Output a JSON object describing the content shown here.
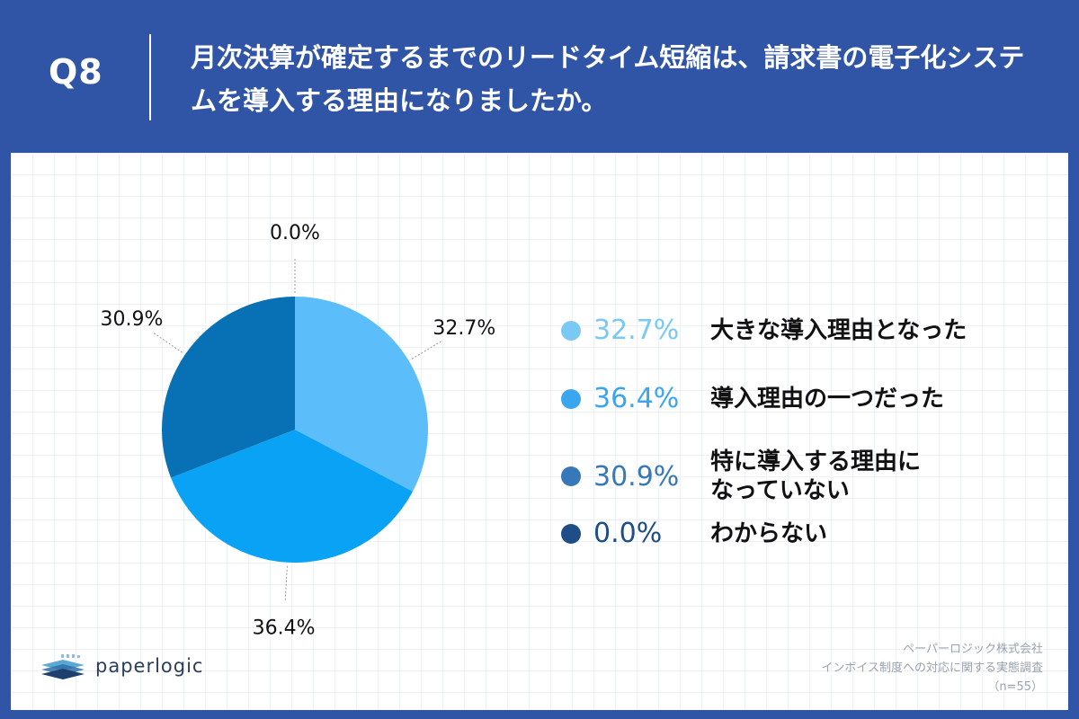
{
  "header": {
    "question_number": "Q8",
    "title": "月次決算が確定するまでのリードタイム短縮は、請求書の電子化システムを導入する理由になりましたか。"
  },
  "chart_data": {
    "type": "pie",
    "slices": [
      {
        "label": "大きな導入理由となった",
        "value": 32.7,
        "value_label": "32.7%",
        "color": "#5bbefa",
        "legend_color": "#7ac9f5"
      },
      {
        "label": "導入理由の一つだった",
        "value": 36.4,
        "value_label": "36.4%",
        "color": "#0aa2f5",
        "legend_color": "#3aa6f0"
      },
      {
        "label": "特に導入する理由になっていない",
        "value": 30.9,
        "value_label": "30.9%",
        "color": "#0870b4",
        "legend_color": "#3678b8"
      },
      {
        "label": "わからない",
        "value": 0.0,
        "value_label": "0.0%",
        "color": "#1f4a8a",
        "legend_color": "#1e4d88"
      }
    ],
    "start_angle": "12 o'clock",
    "direction": "clockwise",
    "legend_placement": "right"
  },
  "legend": {
    "items": [
      {
        "pct": "32.7%",
        "label": "大きな導入理由となった"
      },
      {
        "pct": "36.4%",
        "label": "導入理由の一つだった"
      },
      {
        "pct": "30.9%",
        "label": "特に導入する理由に\nなっていない"
      },
      {
        "pct": "0.0%",
        "label": "わからない"
      }
    ]
  },
  "logo": {
    "text": "paperlogic"
  },
  "source": {
    "company": "ペーパーロジック株式会社",
    "survey": "インボイス制度への対応に関する実態調査",
    "sample": "（n=55）"
  }
}
